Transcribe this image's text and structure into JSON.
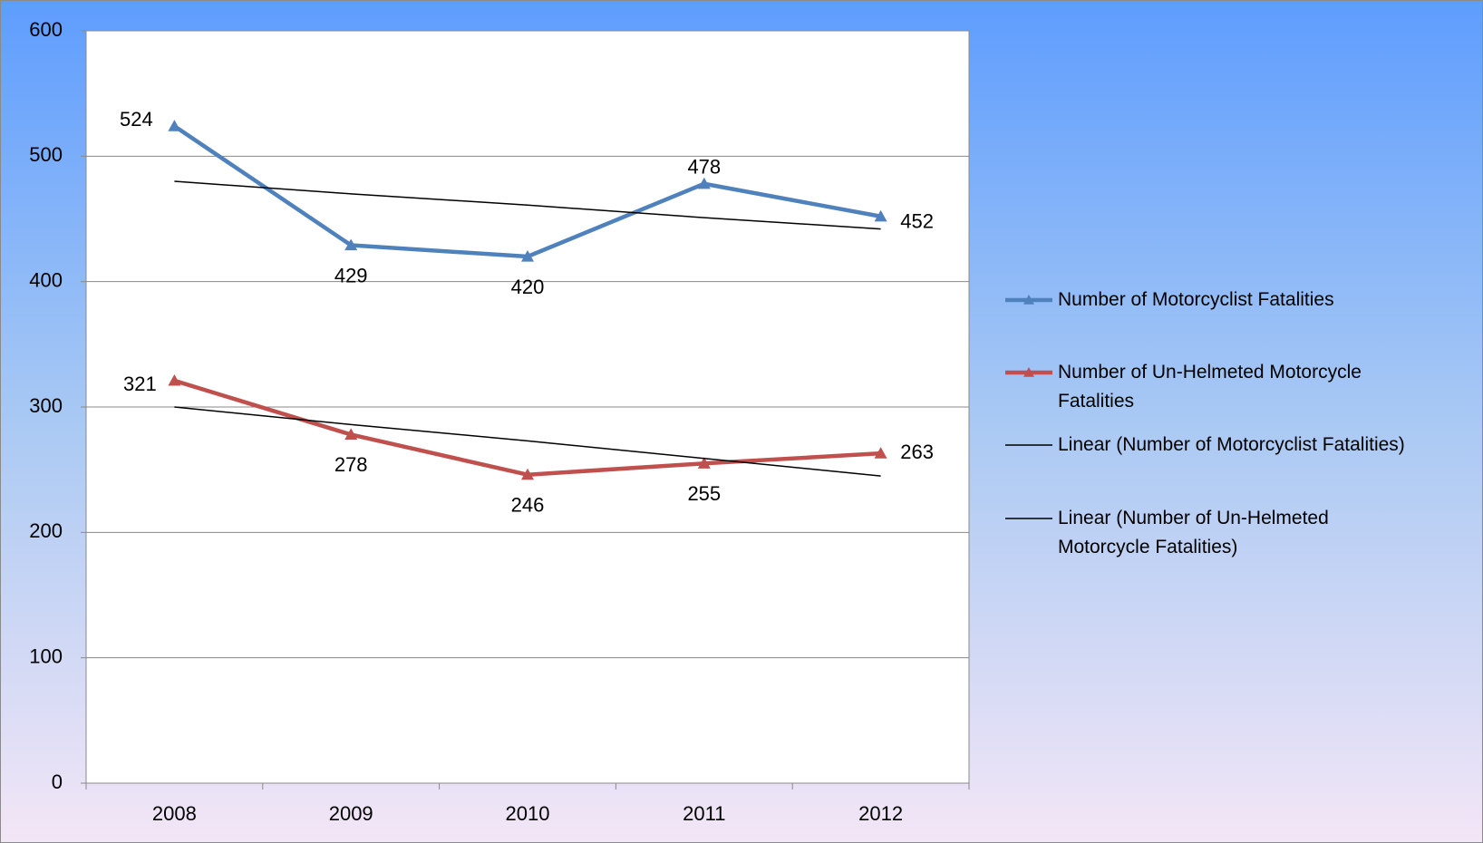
{
  "chart_data": {
    "type": "line",
    "categories": [
      "2008",
      "2009",
      "2010",
      "2011",
      "2012"
    ],
    "series": [
      {
        "name": "Number of Motorcyclist Fatalities",
        "color": "#4f81bd",
        "values": [
          524,
          429,
          420,
          478,
          452
        ]
      },
      {
        "name": "Number of Un-Helmeted Motorcycle Fatalities",
        "color": "#c0504d",
        "values": [
          321,
          278,
          246,
          255,
          263
        ]
      },
      {
        "name": "Linear (Number of Motorcyclist Fatalities)",
        "color": "#000000",
        "trendline": "linear",
        "values": [
          480,
          470,
          461,
          451,
          442
        ]
      },
      {
        "name": "Linear (Number of Un-Helmeted Motorcycle Fatalities)",
        "color": "#000000",
        "trendline": "linear",
        "values": [
          300,
          286,
          273,
          259,
          245
        ]
      }
    ],
    "ylim": [
      0,
      600
    ],
    "yticks": [
      0,
      100,
      200,
      300,
      400,
      500,
      600
    ],
    "grid": true,
    "legend": "right"
  }
}
